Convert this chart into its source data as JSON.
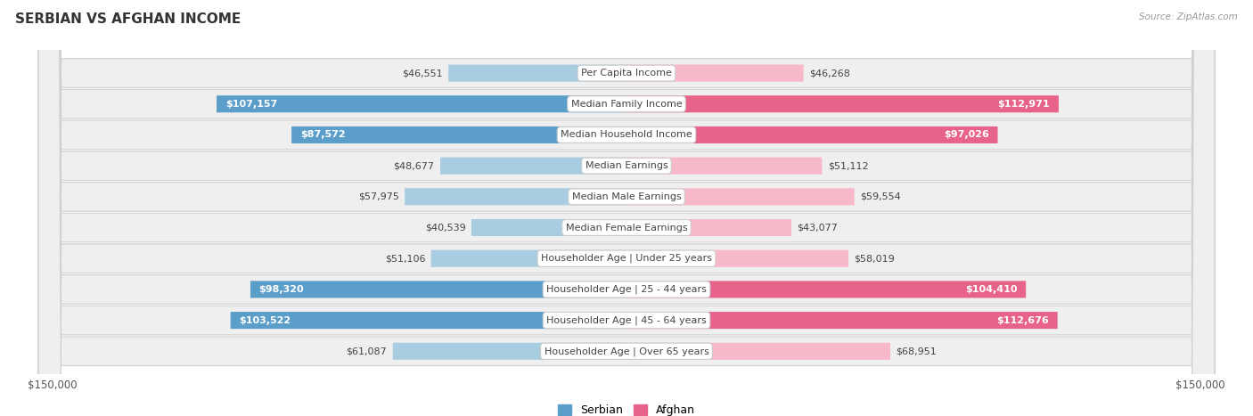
{
  "title": "SERBIAN VS AFGHAN INCOME",
  "source": "Source: ZipAtlas.com",
  "categories": [
    "Per Capita Income",
    "Median Family Income",
    "Median Household Income",
    "Median Earnings",
    "Median Male Earnings",
    "Median Female Earnings",
    "Householder Age | Under 25 years",
    "Householder Age | 25 - 44 years",
    "Householder Age | 45 - 64 years",
    "Householder Age | Over 65 years"
  ],
  "serbian_values": [
    46551,
    107157,
    87572,
    48677,
    57975,
    40539,
    51106,
    98320,
    103522,
    61087
  ],
  "afghan_values": [
    46268,
    112971,
    97026,
    51112,
    59554,
    43077,
    58019,
    104410,
    112676,
    68951
  ],
  "serbian_color_light": "#a8cce0",
  "serbian_color_dark": "#5b9ec9",
  "afghan_color_light": "#f7b8ca",
  "afghan_color_dark": "#e8638a",
  "serbian_label": "Serbian",
  "afghan_label": "Afghan",
  "max_value": 150000,
  "bg_row_color": "#efefef",
  "bg_color": "#ffffff",
  "label_fontsize": 8.0,
  "value_fontsize": 8.0,
  "title_fontsize": 11
}
